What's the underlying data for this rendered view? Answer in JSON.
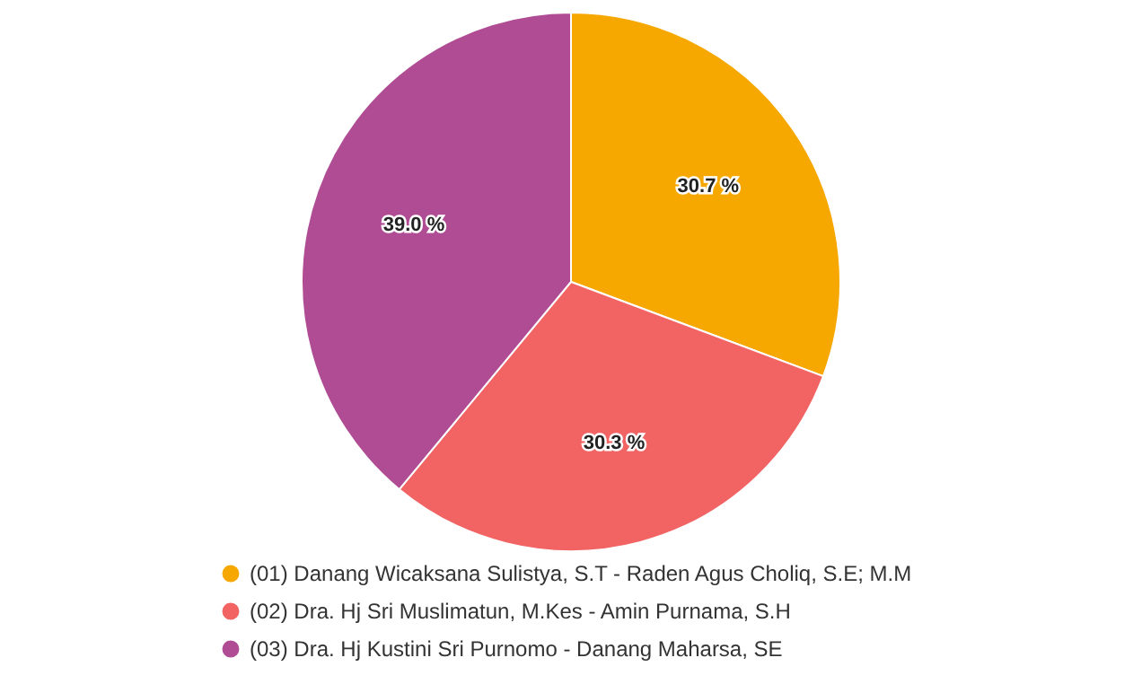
{
  "chart_data": {
    "type": "pie",
    "categories": [
      "(01) Danang Wicaksana Sulistya, S.T - Raden Agus Choliq, S.E; M.M",
      "(02) Dra. Hj Sri Muslimatun, M.Kes - Amin Purnama, S.H",
      "(03) Dra. Hj Kustini Sri Purnomo - Danang Maharsa, SE"
    ],
    "values": [
      30.7,
      30.3,
      39.0
    ],
    "value_labels": [
      "30.7 %",
      "30.3 %",
      "39.0 %"
    ],
    "colors": [
      "#f7a800",
      "#f26464",
      "#b04c94"
    ],
    "legend": "bottom"
  }
}
